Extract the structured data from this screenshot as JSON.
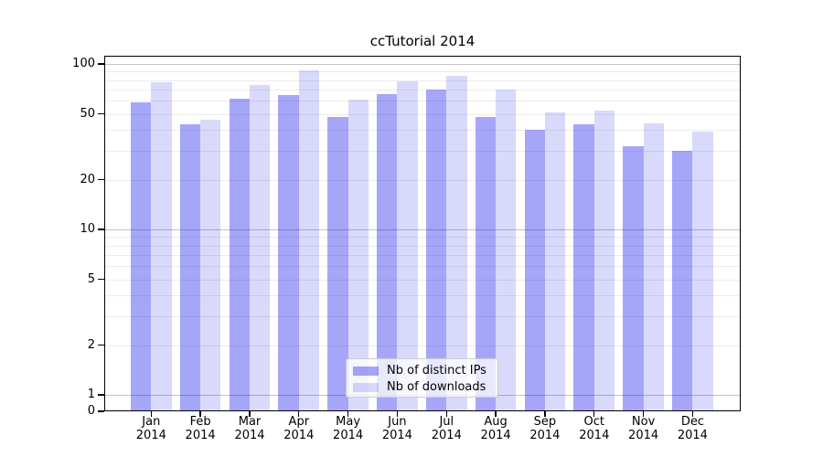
{
  "chart_data": {
    "type": "bar",
    "title": "ccTutorial 2014",
    "categories": [
      "Jan 2014",
      "Feb 2014",
      "Mar 2014",
      "Apr 2014",
      "May 2014",
      "Jun 2014",
      "Jul 2014",
      "Aug 2014",
      "Sep 2014",
      "Oct 2014",
      "Nov 2014",
      "Dec 2014"
    ],
    "series": [
      {
        "name": "Nb of distinct IPs",
        "fill": "rgba(0,0,235,0.35)",
        "solid_hex": "#a6a6f7",
        "values": [
          59,
          43,
          62,
          65,
          48,
          66,
          70,
          48,
          40,
          43,
          32,
          30
        ]
      },
      {
        "name": "Nb of downloads",
        "fill": "rgba(0,0,235,0.15)",
        "solid_hex": "#d9d9fa",
        "values": [
          78,
          46,
          75,
          91,
          61,
          79,
          85,
          70,
          51,
          52,
          44,
          39
        ]
      }
    ],
    "xlabel": "",
    "ylabel": "",
    "yscale": "symlog",
    "ylim": [
      0,
      112
    ],
    "yticks": [
      100,
      50,
      20,
      10,
      5,
      2,
      1,
      0
    ],
    "grid": {
      "orientation": "horizontal",
      "major": [
        100,
        10,
        1
      ],
      "minor": [
        90,
        80,
        70,
        60,
        50,
        40,
        30,
        20,
        9,
        8,
        7,
        6,
        5,
        4,
        3,
        2
      ]
    },
    "legend_position": "lower center"
  }
}
